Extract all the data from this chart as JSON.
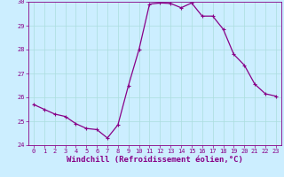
{
  "x": [
    0,
    1,
    2,
    3,
    4,
    5,
    6,
    7,
    8,
    9,
    10,
    11,
    12,
    13,
    14,
    15,
    16,
    17,
    18,
    19,
    20,
    21,
    22,
    23
  ],
  "y": [
    25.7,
    25.5,
    25.3,
    25.2,
    24.9,
    24.7,
    24.65,
    24.3,
    24.85,
    26.5,
    28.0,
    29.9,
    29.95,
    29.93,
    29.75,
    29.95,
    29.4,
    29.4,
    28.85,
    27.8,
    27.35,
    26.55,
    26.15,
    26.05
  ],
  "line_color": "#880088",
  "marker": "+",
  "marker_size": 3,
  "marker_linewidth": 0.8,
  "line_width": 0.9,
  "bg_color": "#cceeff",
  "grid_color": "#aadddd",
  "xlabel": "Windchill (Refroidissement éolien,°C)",
  "xlabel_color": "#880088",
  "ylim": [
    24,
    30
  ],
  "ytick_labels": [
    "24",
    "25",
    "26",
    "27",
    "28",
    "29",
    "30"
  ],
  "ytick_values": [
    24,
    25,
    26,
    27,
    28,
    29,
    30
  ],
  "xtick_values": [
    0,
    1,
    2,
    3,
    4,
    5,
    6,
    7,
    8,
    9,
    10,
    11,
    12,
    13,
    14,
    15,
    16,
    17,
    18,
    19,
    20,
    21,
    22,
    23
  ],
  "tick_color": "#880088",
  "tick_fontsize": 5.0,
  "xlabel_fontsize": 6.5,
  "spine_color": "#880088",
  "xlim": [
    -0.5,
    23.5
  ]
}
